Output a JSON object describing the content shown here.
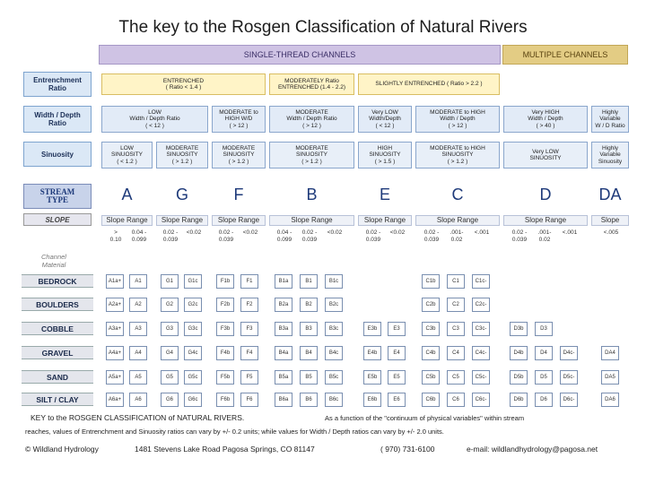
{
  "title": "The key to the Rosgen Classification of Natural Rivers",
  "header": {
    "single_thread": "SINGLE-THREAD  CHANNELS",
    "multiple": "MULTIPLE  CHANNELS"
  },
  "row_labels": {
    "entrenchment": "Entrenchment\nRatio",
    "width_depth": "Width / Depth\nRatio",
    "sinuosity": "Sinuosity",
    "stream_type": "STREAM\nTYPE",
    "slope": "SLOPE",
    "channel_material": "Channel\nMaterial"
  },
  "entrenchment_boxes": [
    "ENTRENCHED\n( Ratio < 1.4 )",
    "MODERATELY  Ratio\nENTRENCHED (1.4 - 2.2)",
    "SLIGHTLY  ENTRENCHED ( Ratio > 2.2 )"
  ],
  "width_depth_boxes": [
    "LOW\nWidth / Depth Ratio\n( < 12 )",
    "MODERATE to\nHIGH  W/D\n( > 12 )",
    "MODERATE\nWidth / Depth Ratio\n( > 12 )",
    "Very LOW\nWidth/Depth\n( < 12 )",
    "MODERATE to HIGH\nWidth / Depth\n( > 12 )",
    "Very HIGH\nWidth / Depth\n( > 40 )",
    "Highly\nVariable\nW / D Ratio"
  ],
  "sinuosity_boxes": [
    "LOW\nSINUOSITY\n( < 1.2 )",
    "MODERATE\nSINUOSITY\n( > 1.2 )",
    "MODERATE\nSINUOSITY\n( > 1.2 )",
    "MODERATE\nSINUOSITY\n( > 1.2 )",
    "HIGH\nSINUOSITY\n( > 1.5 )",
    "MODERATE to HIGH\nSINUOSITY\n( > 1.2 )",
    "Very LOW\nSINUOSITY",
    "Highly\nVariable\nSinuosity"
  ],
  "stream_types": [
    "A",
    "G",
    "F",
    "B",
    "E",
    "C",
    "D",
    "DA"
  ],
  "slope_headers": [
    "Slope Range",
    "Slope Range",
    "Slope Range",
    "Slope Range",
    "Slope Range",
    "Slope Range",
    "Slope Range",
    "Slope"
  ],
  "slope_values": [
    ">\n0.10",
    "0.04 -\n0.099",
    "0.02 -\n0.039",
    "<0.02",
    "0.02 -\n0.039",
    "<0.02",
    "0.04 -\n0.099",
    "0.02 -\n0.039",
    "<0.02",
    "0.02 -\n0.039",
    "<0.02",
    "0.02 -\n0.039",
    ".001-\n0.02",
    "<.001",
    "0.02 -\n0.039",
    ".001-\n0.02",
    "<.001",
    "<.005"
  ],
  "materials": [
    "BEDROCK",
    "BOULDERS",
    "COBBLE",
    "GRAVEL",
    "SAND",
    "SILT / CLAY"
  ],
  "type_cells": [
    [
      "A1a+",
      "A1",
      "G1",
      "G1c",
      "F1b",
      "F1",
      "B1a",
      "B1",
      "B1c",
      "",
      "",
      "C1b",
      "C1",
      "C1c-",
      "",
      "",
      "",
      ""
    ],
    [
      "A2a+",
      "A2",
      "G2",
      "G2c",
      "F2b",
      "F2",
      "B2a",
      "B2",
      "B2c",
      "",
      "",
      "C2b",
      "C2",
      "C2c-",
      "",
      "",
      "",
      ""
    ],
    [
      "A3a+",
      "A3",
      "G3",
      "G3c",
      "F3b",
      "F3",
      "B3a",
      "B3",
      "B3c",
      "E3b",
      "E3",
      "C3b",
      "C3",
      "C3c-",
      "D3b",
      "D3",
      "",
      ""
    ],
    [
      "A4a+",
      "A4",
      "G4",
      "G4c",
      "F4b",
      "F4",
      "B4a",
      "B4",
      "B4c",
      "E4b",
      "E4",
      "C4b",
      "C4",
      "C4c-",
      "D4b",
      "D4",
      "D4c-",
      "DA4"
    ],
    [
      "A5a+",
      "A5",
      "G5",
      "G5c",
      "F5b",
      "F5",
      "B5a",
      "B5",
      "B5c",
      "E5b",
      "E5",
      "C5b",
      "C5",
      "C5c-",
      "D5b",
      "D5",
      "D5c-",
      "DA5"
    ],
    [
      "A6a+",
      "A6",
      "G6",
      "G6c",
      "F6b",
      "F6",
      "B6a",
      "B6",
      "B6c",
      "E6b",
      "E6",
      "C6b",
      "C6",
      "C6c-",
      "D6b",
      "D6",
      "D6c-",
      "DA6"
    ]
  ],
  "footer": {
    "key_text": "KEY to the ROSGEN CLASSIFICATION of NATURAL RIVERS.",
    "note_right": "As a function of the \"continuum of physical variables\" within stream",
    "note_line2": "reaches, values of Entrenchment and Sinuosity ratios can vary by +/- 0.2 units; while values for Width / Depth ratios can vary by +/- 2.0 units.",
    "copyright": "© Wildland Hydrology",
    "address": "1481 Stevens Lake Road Pagosa Springs, CO 81147",
    "phone": "( 970) 731-6100",
    "email": "e-mail: wildlandhydrology@pagosa.net"
  },
  "colors": {
    "header_purple": "#c9bce0",
    "header_gold": "#e0c77c",
    "row_label": "#5b9bd5",
    "entrench_box": "#fff3c4",
    "wd_box": "#dde8f5",
    "sin_box": "#e3ecf7",
    "stream_blue": "#1e3a7a"
  }
}
